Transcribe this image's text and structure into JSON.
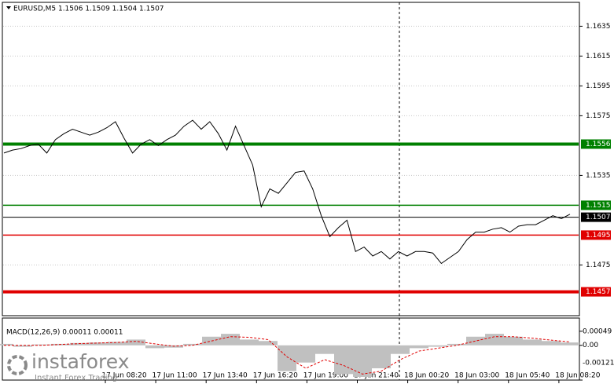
{
  "chart_data": {
    "type": "line",
    "title": "EURUSD,M5 1.1506 1.1509 1.1504 1.1507",
    "x_labels": [
      "17 Jun 08:20",
      "17 Jun 11:00",
      "17 Jun 13:40",
      "17 Jun 16:20",
      "17 Jun 19:00",
      "17 Jun 21:40",
      "18 Jun 00:20",
      "18 Jun 03:00",
      "18 Jun 05:40",
      "18 Jun 08:20"
    ],
    "series": [
      {
        "name": "EURUSD",
        "color": "#000000",
        "values": [
          1.155,
          1.1552,
          1.1553,
          1.1555,
          1.1556,
          1.155,
          1.1559,
          1.1563,
          1.1566,
          1.1564,
          1.1562,
          1.1564,
          1.1567,
          1.1571,
          1.156,
          1.155,
          1.1556,
          1.1559,
          1.1555,
          1.1559,
          1.1562,
          1.1568,
          1.1572,
          1.1566,
          1.1571,
          1.1563,
          1.1552,
          1.1568,
          1.1555,
          1.1542,
          1.1514,
          1.1526,
          1.1523,
          1.153,
          1.1537,
          1.1538,
          1.1526,
          1.1508,
          1.1494,
          1.15,
          1.1505,
          1.1484,
          1.1487,
          1.1481,
          1.1484,
          1.1479,
          1.1484,
          1.1481,
          1.1484,
          1.1484,
          1.1483,
          1.1476,
          1.148,
          1.1484,
          1.1492,
          1.1497,
          1.1497,
          1.1499,
          1.15,
          1.1497,
          1.1501,
          1.1502,
          1.1502,
          1.1505,
          1.1508,
          1.1506,
          1.1509
        ]
      }
    ],
    "ylim": [
      1.1441,
      1.1651
    ],
    "yticks": [
      1.1635,
      1.1615,
      1.1595,
      1.1575,
      1.1535,
      1.1475
    ],
    "grid": true,
    "levels": [
      {
        "value": 1.1556,
        "color": "#008000",
        "width": 4
      },
      {
        "value": 1.1515,
        "color": "#008000",
        "width": 1.5
      },
      {
        "value": 1.1507,
        "color": "#000000",
        "width": 1
      },
      {
        "value": 1.1495,
        "color": "#e00000",
        "width": 1.5
      },
      {
        "value": 1.1457,
        "color": "#e00000",
        "width": 4
      }
    ],
    "macd": {
      "title": "MACD(12,26,9) 0.00011 0.00011",
      "ylim": [
        -0.00121,
        0.00095
      ],
      "yticks": [
        0.00049,
        {
          "value": 0,
          "label": "0.00"
        },
        -0.00121
      ],
      "histogram": {
        "color": "#c0c0c0",
        "values": [
          5e-05,
          -5e-05,
          3e-05,
          5e-05,
          8e-05,
          0.0001,
          0.00012,
          0.0002,
          -0.0001,
          -8e-05,
          5e-05,
          0.0003,
          0.0004,
          0.0002,
          0.00015,
          -0.0009,
          -0.0006,
          -0.0003,
          -0.001,
          -0.0011,
          -0.0008,
          -0.0003,
          -0.0001,
          -5e-05,
          5e-05,
          0.0003,
          0.0004,
          0.0003,
          0.0002,
          0.00015,
          0.0001
        ]
      },
      "signal": {
        "color": "#e00000",
        "values": [
          0,
          0,
          0,
          3e-05,
          6e-05,
          8e-05,
          0.0001,
          0.00014,
          5e-05,
          -3e-05,
          0,
          0.00015,
          0.0003,
          0.00028,
          0.0002,
          -0.0004,
          -0.0008,
          -0.0005,
          -0.0007,
          -0.001,
          -0.0009,
          -0.0005,
          -0.0002,
          -0.0001,
          0,
          0.00015,
          0.0003,
          0.0003,
          0.00025,
          0.00018,
          0.00012
        ]
      }
    },
    "logo": {
      "name": "instaforex",
      "tagline": "Instant Forex Trading"
    }
  }
}
